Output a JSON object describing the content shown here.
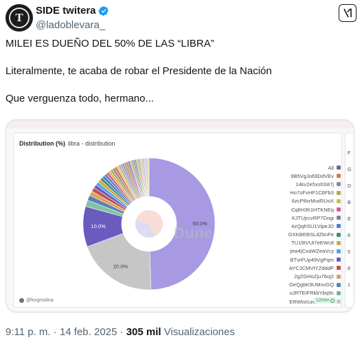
{
  "tweet": {
    "display_name": "SIDE twitera",
    "handle": "@ladoblevara_",
    "avatar_letter": "T",
    "verified": true,
    "lines": [
      "MILEI ES DUEÑO DEL 50% DE LAS “LIBRA”",
      "Literalmente, te acaba de robar el Presidente de la Nación",
      "Que verguenza todo, hermano..."
    ],
    "time": "9:11 p. m.",
    "date": "14 feb. 2025",
    "sep": "·",
    "views": "305 mil",
    "views_label": "Visualizaciones"
  },
  "media": {
    "title": "Distribution (%)",
    "subtitle": "libra - distribution",
    "watermark": "Dune",
    "credit": "@forgmolina",
    "refresh": "12min",
    "legend_all": "All",
    "legend": [
      {
        "label": "9B5VgJo69DdVEv",
        "color": "#e0714f"
      },
      {
        "label": "14kv2e5xshS87j",
        "color": "#8c8f94"
      },
      {
        "label": "Ho7oFvHF1C6Fb3",
        "color": "#b7a55a"
      },
      {
        "label": "6zcP8srMud5UoX",
        "color": "#d9b84a"
      },
      {
        "label": "Cq6H3h1HTKNEq",
        "color": "#d65a9e"
      },
      {
        "label": "KJTUjrcvRP7Dogi",
        "color": "#7a7fa8"
      },
      {
        "label": "4zQqfrSU1VipeJD",
        "color": "#4a7fd4"
      },
      {
        "label": "GXKBEBSLdZknFe",
        "color": "#3f8f68"
      },
      {
        "label": "TU19tVUt7eEWc8",
        "color": "#c9a94a"
      },
      {
        "label": "jew4jCxaWZeaVcy",
        "color": "#5aa0e0"
      },
      {
        "label": "BTvrFUp49VgPqm",
        "color": "#6a5bbf"
      },
      {
        "label": "AYCJCMVtYZdddP",
        "color": "#c0504d"
      },
      {
        "label": "2gZGHoZju76oj2",
        "color": "#d9a35a"
      },
      {
        "label": "GeQgbK9UMvvGQ",
        "color": "#5b7fb8"
      },
      {
        "label": "uJRTEiFRkbYbq9c",
        "color": "#6fb8a0"
      },
      {
        "label": "ERWtsrLzexRkiv11",
        "color": "#c8c8c8"
      }
    ],
    "side_labels": [
      "F",
      "G",
      "D",
      "B",
      "E",
      "8",
      "5",
      "8",
      "1"
    ]
  },
  "chart_data": {
    "type": "pie",
    "title": "Distribution (%)",
    "subtitle": "libra - distribution",
    "slice_labels_shown": [
      "50.0%",
      "20.0%",
      "10.0%"
    ],
    "slices": [
      {
        "value": 50.0,
        "color": "#a899e3",
        "label": "50.0%"
      },
      {
        "value": 20.0,
        "color": "#c6c6c6",
        "label": "20.0%"
      },
      {
        "value": 10.0,
        "color": "#6a5bbf",
        "label": "10.0%"
      },
      {
        "value": 1.6,
        "color": "#7fc4a5",
        "label": ""
      },
      {
        "value": 1.3,
        "color": "#5b7fb8",
        "label": ""
      },
      {
        "value": 1.1,
        "color": "#d9a35a",
        "label": ""
      },
      {
        "value": 1.0,
        "color": "#c0504d",
        "label": ""
      },
      {
        "value": 0.9,
        "color": "#6a5bbf",
        "label": ""
      },
      {
        "value": 0.8,
        "color": "#5aa0e0",
        "label": ""
      },
      {
        "value": 0.8,
        "color": "#c9a94a",
        "label": ""
      },
      {
        "value": 0.7,
        "color": "#3f8f68",
        "label": ""
      },
      {
        "value": 0.7,
        "color": "#4a7fd4",
        "label": ""
      },
      {
        "value": 0.7,
        "color": "#7a7fa8",
        "label": ""
      },
      {
        "value": 0.6,
        "color": "#d65a9e",
        "label": ""
      },
      {
        "value": 0.6,
        "color": "#d9b84a",
        "label": ""
      },
      {
        "value": 0.6,
        "color": "#b7a55a",
        "label": ""
      },
      {
        "value": 0.6,
        "color": "#8c8f94",
        "label": ""
      },
      {
        "value": 0.6,
        "color": "#e0714f",
        "label": ""
      },
      {
        "value": 0.5,
        "color": "#e8c07a",
        "label": ""
      },
      {
        "value": 0.5,
        "color": "#9ac16a",
        "label": ""
      },
      {
        "value": 0.5,
        "color": "#c48ad0",
        "label": ""
      },
      {
        "value": 0.5,
        "color": "#6fa3c4",
        "label": ""
      },
      {
        "value": 0.5,
        "color": "#d8806a",
        "label": ""
      },
      {
        "value": 0.5,
        "color": "#a5a05a",
        "label": ""
      },
      {
        "value": 0.5,
        "color": "#8f7cc9",
        "label": ""
      },
      {
        "value": 0.4,
        "color": "#e4a0b0",
        "label": ""
      },
      {
        "value": 0.4,
        "color": "#77b28c",
        "label": ""
      },
      {
        "value": 0.4,
        "color": "#b08a5e",
        "label": ""
      },
      {
        "value": 0.4,
        "color": "#7090d8",
        "label": ""
      },
      {
        "value": 0.4,
        "color": "#d0c060",
        "label": ""
      },
      {
        "value": 0.4,
        "color": "#a0a8b8",
        "label": ""
      },
      {
        "value": 0.4,
        "color": "#e0b8a0",
        "label": ""
      },
      {
        "value": 0.4,
        "color": "#b8d0a0",
        "label": ""
      },
      {
        "value": 0.4,
        "color": "#c0b0e0",
        "label": ""
      },
      {
        "value": 0.4,
        "color": "#f0c8a8",
        "label": ""
      },
      {
        "value": 0.4,
        "color": "#a8c8e8",
        "label": ""
      },
      {
        "value": 0.4,
        "color": "#e8d8a0",
        "label": ""
      }
    ],
    "legend_placement": "right"
  }
}
